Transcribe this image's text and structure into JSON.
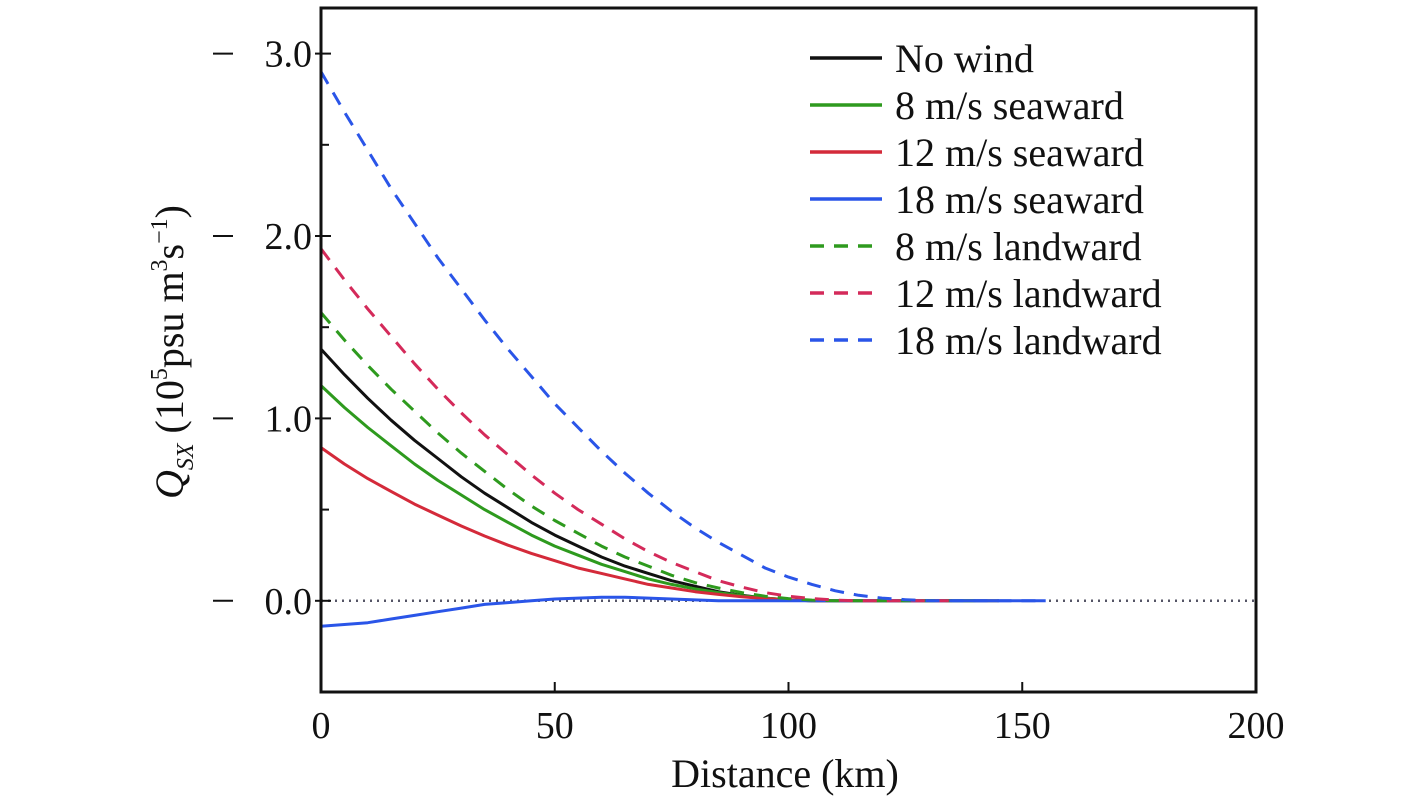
{
  "chart_data": {
    "type": "line",
    "xlabel": "Distance (km)",
    "ylabel_parts": {
      "symbol": "Q",
      "subscript": "SX",
      "prefix": " (10",
      "exp1": "5",
      "middle": "psu m",
      "exp2": "3",
      "unit_s": "s",
      "exp3": "−1",
      "suffix": ")"
    },
    "xlim": [
      0,
      200
    ],
    "ylim": [
      -0.5,
      3.25
    ],
    "x_ticks": [
      0,
      50,
      100,
      150,
      200
    ],
    "x_tick_labels": [
      "0",
      "50",
      "100",
      "150",
      "200"
    ],
    "y_ticks": [
      0.0,
      1.0,
      2.0,
      3.0
    ],
    "y_tick_labels": [
      "0.0",
      "1.0",
      "2.0",
      "3.0"
    ],
    "y_minor_ticks": [
      -0.5,
      0.5,
      1.5,
      2.5
    ],
    "grid": false,
    "legend_position": "top-right",
    "zero_reference_line": {
      "y": 0,
      "style": "dotted",
      "color": "#555566"
    },
    "x": [
      0,
      5,
      10,
      15,
      20,
      25,
      30,
      35,
      40,
      45,
      50,
      55,
      60,
      65,
      70,
      75,
      80,
      85,
      90,
      95,
      100,
      105,
      110,
      115,
      120,
      125,
      130,
      135,
      140,
      145,
      150,
      155
    ],
    "series": [
      {
        "name": "No wind",
        "color": "#111111",
        "dash": "solid",
        "values": [
          1.38,
          1.24,
          1.11,
          0.99,
          0.88,
          0.78,
          0.68,
          0.59,
          0.51,
          0.43,
          0.36,
          0.3,
          0.24,
          0.19,
          0.15,
          0.11,
          0.08,
          0.05,
          0.03,
          0.015,
          0.005,
          0.0,
          0.0,
          0.0,
          0.0,
          0.0,
          0.0,
          0.0,
          0.0,
          0.0,
          null,
          null
        ]
      },
      {
        "name": "8 m/s seaward",
        "color": "#2e9a1e",
        "dash": "solid",
        "values": [
          1.18,
          1.06,
          0.95,
          0.85,
          0.75,
          0.66,
          0.58,
          0.5,
          0.43,
          0.36,
          0.3,
          0.25,
          0.2,
          0.16,
          0.12,
          0.09,
          0.065,
          0.045,
          0.028,
          0.015,
          0.006,
          0.0,
          0.0,
          0.0,
          0.0,
          0.0,
          0.0,
          0.0,
          0.0,
          null,
          null,
          null
        ]
      },
      {
        "name": "12 m/s seaward",
        "color": "#d42a3a",
        "dash": "solid",
        "values": [
          0.84,
          0.75,
          0.67,
          0.6,
          0.53,
          0.47,
          0.41,
          0.355,
          0.305,
          0.26,
          0.22,
          0.18,
          0.15,
          0.12,
          0.09,
          0.07,
          0.05,
          0.035,
          0.022,
          0.012,
          0.005,
          0.0,
          0.0,
          0.0,
          0.0,
          0.0,
          0.0,
          0.0,
          null,
          null,
          null,
          null
        ]
      },
      {
        "name": "18 m/s seaward",
        "color": "#2a55e8",
        "dash": "solid",
        "values": [
          -0.14,
          -0.13,
          -0.12,
          -0.1,
          -0.08,
          -0.06,
          -0.04,
          -0.02,
          -0.01,
          0.0,
          0.01,
          0.015,
          0.02,
          0.02,
          0.015,
          0.01,
          0.005,
          0.0,
          0.0,
          0.0,
          0.0,
          0.0,
          0.0,
          0.0,
          0.0,
          0.0,
          0.0,
          0.0,
          0.0,
          0.0,
          0.0,
          0.0
        ]
      },
      {
        "name": "8 m/s landward",
        "color": "#2e9a1e",
        "dash": "dashed",
        "values": [
          1.58,
          1.43,
          1.29,
          1.16,
          1.04,
          0.92,
          0.81,
          0.71,
          0.61,
          0.52,
          0.44,
          0.37,
          0.3,
          0.24,
          0.19,
          0.14,
          0.1,
          0.07,
          0.045,
          0.025,
          0.012,
          0.004,
          0.0,
          0.0,
          0.0,
          0.0,
          0.0,
          0.0,
          null,
          null,
          null,
          null
        ]
      },
      {
        "name": "12 m/s landward",
        "color": "#d42a5a",
        "dash": "dashed",
        "values": [
          1.93,
          1.76,
          1.6,
          1.45,
          1.3,
          1.16,
          1.03,
          0.91,
          0.8,
          0.69,
          0.59,
          0.5,
          0.42,
          0.34,
          0.27,
          0.21,
          0.16,
          0.11,
          0.075,
          0.045,
          0.025,
          0.012,
          0.004,
          0.0,
          0.0,
          0.0,
          0.0,
          0.0,
          null,
          null,
          null,
          null
        ]
      },
      {
        "name": "18 m/s landward",
        "color": "#2a55e8",
        "dash": "dashed",
        "values": [
          2.9,
          2.68,
          2.47,
          2.26,
          2.07,
          1.88,
          1.71,
          1.54,
          1.38,
          1.23,
          1.08,
          0.95,
          0.82,
          0.7,
          0.59,
          0.49,
          0.4,
          0.32,
          0.25,
          0.18,
          0.13,
          0.09,
          0.055,
          0.03,
          0.015,
          0.006,
          0.0,
          0.0,
          0.0,
          0.0,
          0.0,
          0.0
        ]
      }
    ]
  }
}
